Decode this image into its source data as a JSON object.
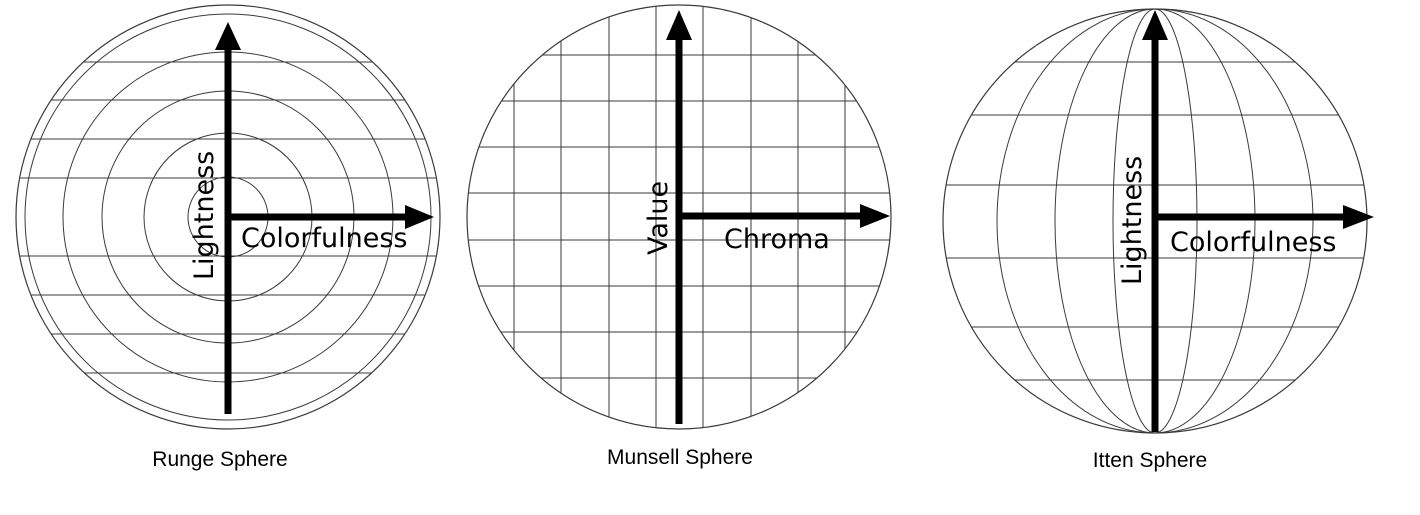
{
  "colors": {
    "axis": "#000000",
    "lines": "#3a3a3a",
    "background": "#ffffff"
  },
  "diagrams": [
    {
      "key": "runge",
      "caption": "Runge Sphere",
      "vertical_axis_label": "Lightness",
      "horizontal_axis_label": "Colorfulness"
    },
    {
      "key": "munsell",
      "caption": "Munsell Sphere",
      "vertical_axis_label": "Value",
      "horizontal_axis_label": "Chroma"
    },
    {
      "key": "itten",
      "caption": "Itten Sphere",
      "vertical_axis_label": "Lightness",
      "horizontal_axis_label": "Colorfulness"
    }
  ]
}
